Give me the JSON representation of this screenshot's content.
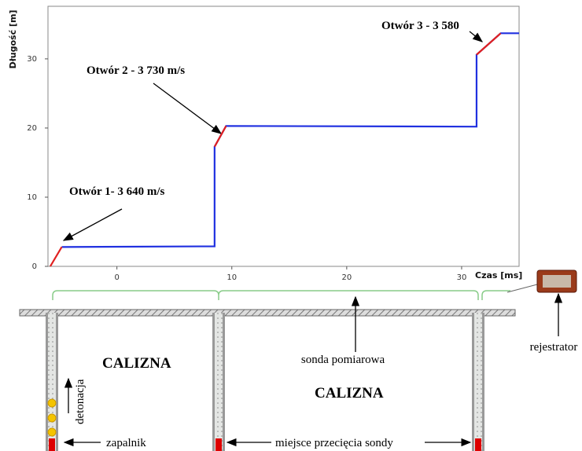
{
  "chart_data": {
    "type": "line",
    "x_label": "Czas [ms]",
    "y_label": "Długość [m]",
    "xlim": [
      -6,
      35
    ],
    "ylim": [
      0,
      37.6
    ],
    "xticks": [
      0,
      10,
      20,
      30
    ],
    "yticks": [
      0,
      10,
      20,
      30
    ],
    "series": [
      {
        "color": "#2030e0",
        "x": [
          -4.8,
          8.5,
          8.5,
          9.5,
          31.3,
          31.3,
          33.4,
          35
        ],
        "values": [
          2.8,
          2.9,
          17.3,
          20.3,
          20.2,
          30.6,
          33.7,
          33.7
        ]
      },
      {
        "color": "#e02020",
        "x": [
          -5.8,
          -4.8,
          null,
          8.5,
          9.5,
          null,
          31.3,
          33.4
        ],
        "values": [
          0,
          2.8,
          null,
          17.3,
          20.3,
          null,
          30.6,
          33.7
        ]
      }
    ],
    "annotations": [
      "Otwór 1- 3 640 m/s",
      "Otwór 2 - 3 730  m/s",
      "Otwór 3 - 3 580"
    ]
  },
  "diagram": {
    "calizna_1": "CALIZNA",
    "calizna_2": "CALIZNA",
    "sonda": "sonda pomiarowa",
    "rejestrator": "rejestrator",
    "detonacja": "detonacja",
    "zapalnik": "zapalnik",
    "miejsce": "miejsce przecięcia sondy"
  }
}
